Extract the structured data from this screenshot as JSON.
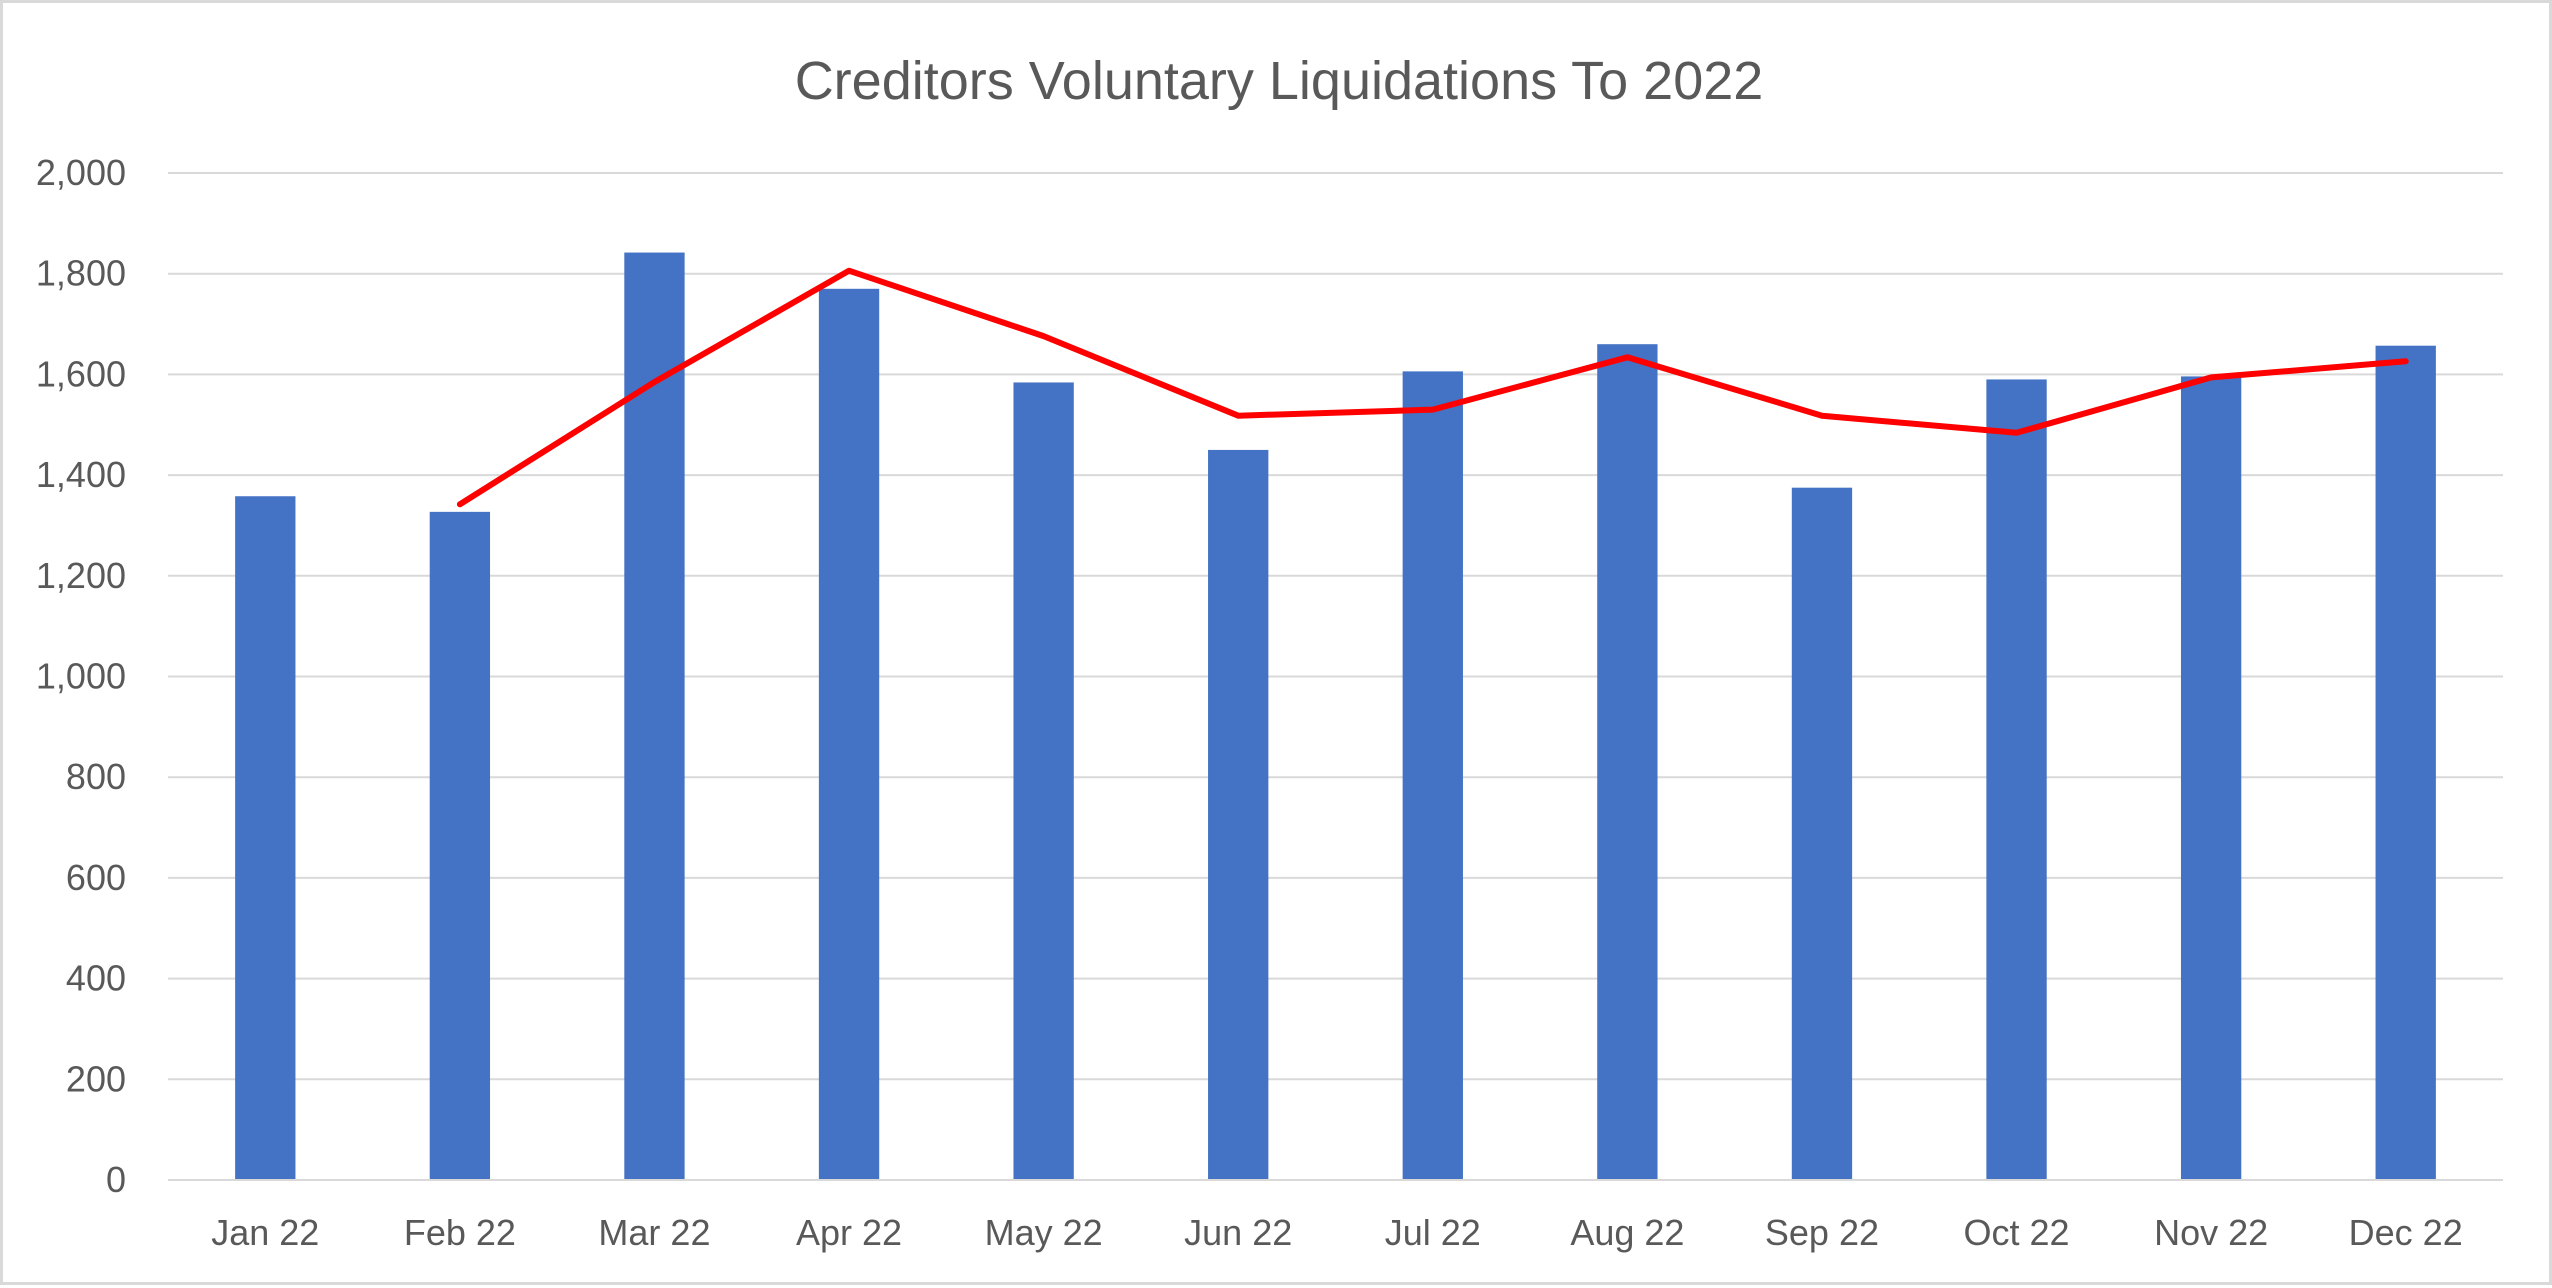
{
  "chart_data": {
    "type": "bar",
    "title": "Creditors Voluntary Liquidations To 2022",
    "xlabel": "",
    "ylabel": "",
    "ylim": [
      0,
      2000
    ],
    "yticks": [
      0,
      200,
      400,
      600,
      800,
      1000,
      1200,
      1400,
      1600,
      1800,
      2000
    ],
    "ytick_labels": [
      "0",
      "200",
      "400",
      "600",
      "800",
      "1,000",
      "1,200",
      "1,400",
      "1,600",
      "1,800",
      "2,000"
    ],
    "grid": true,
    "legend": "none",
    "categories": [
      "Jan 22",
      "Feb 22",
      "Mar 22",
      "Apr 22",
      "May 22",
      "Jun 22",
      "Jul 22",
      "Aug 22",
      "Sep 22",
      "Oct 22",
      "Nov 22",
      "Dec 22"
    ],
    "series": [
      {
        "type": "bar",
        "color": "#4472c4",
        "values": [
          1358,
          1327,
          1842,
          1770,
          1584,
          1450,
          1606,
          1660,
          1375,
          1590,
          1596,
          1657
        ]
      },
      {
        "type": "line",
        "color": "#ff0000",
        "values": [
          null,
          1342,
          1585,
          1806,
          1676,
          1518,
          1530,
          1634,
          1518,
          1484,
          1594,
          1626
        ]
      }
    ]
  }
}
